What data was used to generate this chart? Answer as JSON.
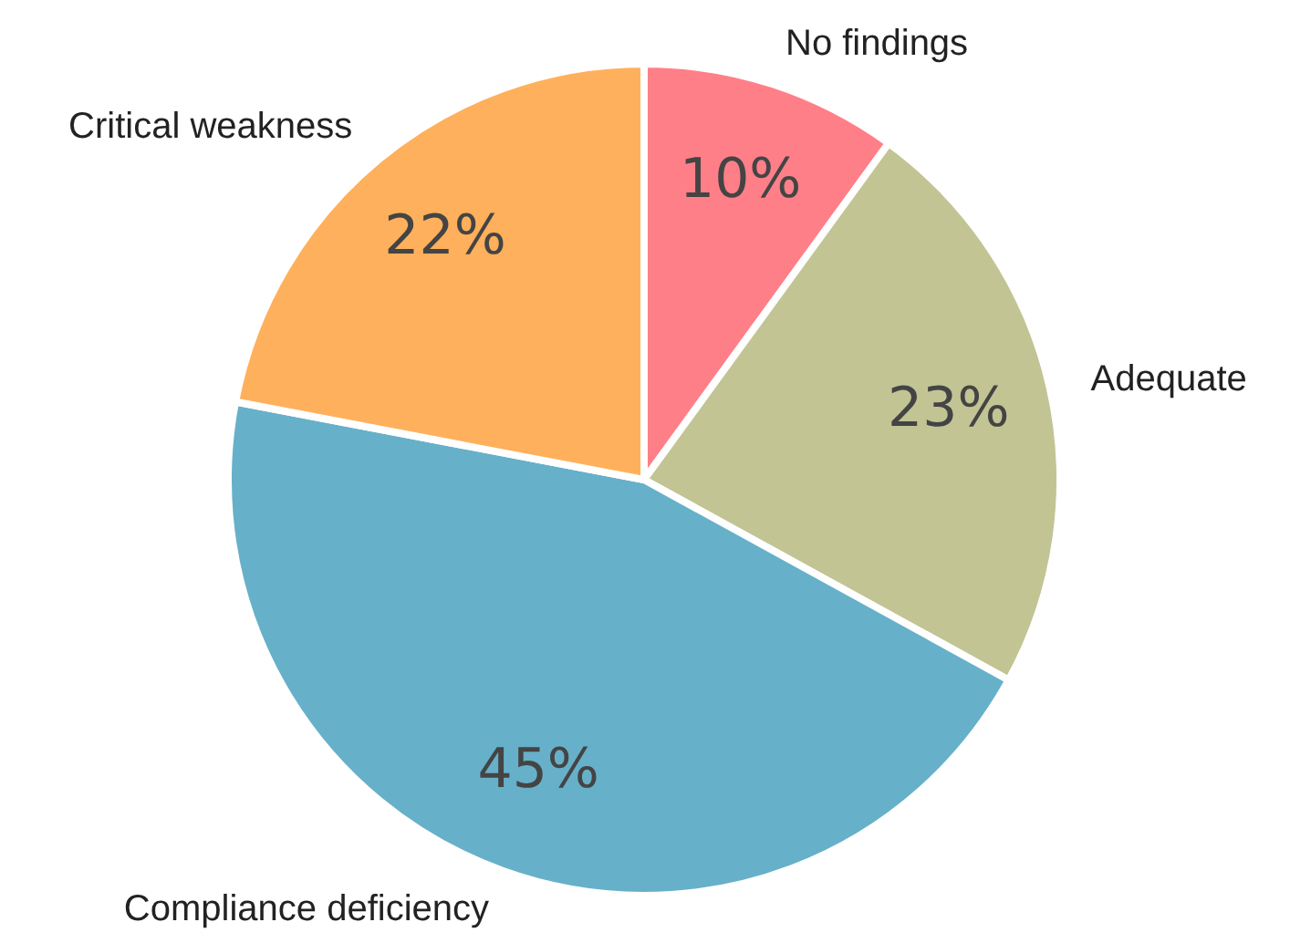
{
  "chart_data": {
    "type": "pie",
    "categories": [
      "No findings",
      "Adequate",
      "Compliance deficiency",
      "Critical weakness"
    ],
    "values": [
      10,
      23,
      45,
      22
    ],
    "value_labels": [
      "10%",
      "23%",
      "45%",
      "22%"
    ],
    "colors": [
      "#ff7f88",
      "#c2c494",
      "#67b0c9",
      "#ffb05c"
    ],
    "legend": false
  }
}
